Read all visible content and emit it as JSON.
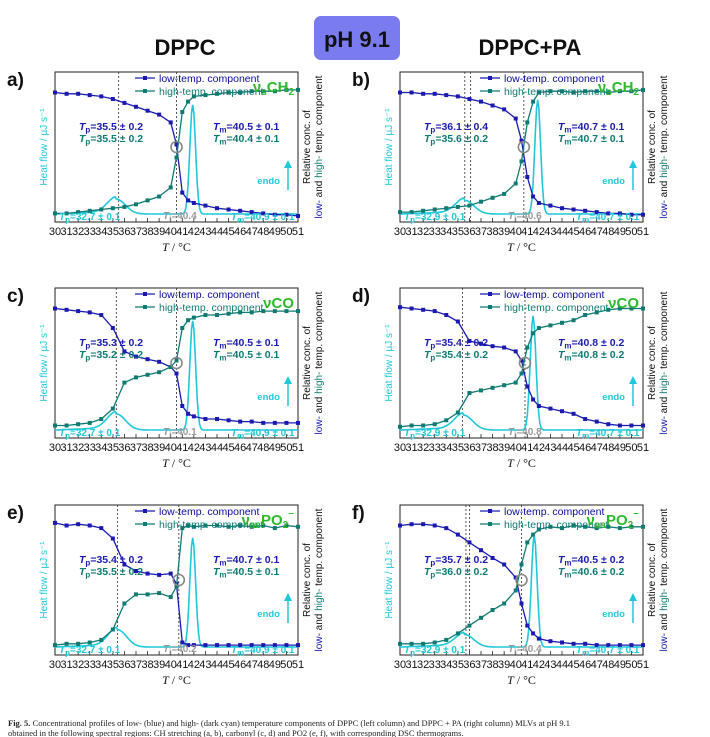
{
  "figure": {
    "ph_label": "pH 9.1",
    "ph_badge_color": "#7b7bf0",
    "columns": [
      "DPPC",
      "DPPC+PA"
    ],
    "x_axis_title": "T / °C",
    "left_axis_title": "Heat flow / µJ s⁻¹",
    "right_axis_title_line1": "Relative conc. of",
    "right_axis_title_line2": "low- and high- temp. component",
    "endo_label": "endo",
    "legend": {
      "low": "low-temp. component",
      "high": "high-temp. component"
    },
    "colors": {
      "low": "#1a1ab0",
      "high": "#0f7a72",
      "dsc": "#1ec8d8",
      "band": "#2eb82e",
      "circle": "#888888"
    }
  },
  "caption": {
    "label": "Fig. 5.",
    "text": "Concentrational profiles of low- (blue) and high- (dark cyan) temperature components of DPPC (left column) and DPPC + PA (right column) MLVs at pH 9.1",
    "text2": "obtained in the following spectral regions: CH stretching (a, b), carbonyl (c, d) and PO2 (e, f), with corresponding DSC thermograms."
  },
  "chart_data": [
    {
      "panel": "a)",
      "type": "line",
      "band": "νsCH2",
      "xlim": [
        30,
        51
      ],
      "xticks": [
        30,
        31,
        32,
        33,
        34,
        35,
        36,
        37,
        38,
        39,
        40,
        41,
        42,
        43,
        44,
        45,
        46,
        47,
        48,
        49,
        50,
        51
      ],
      "x": [
        30,
        31,
        32,
        33,
        34,
        35,
        36,
        37,
        38,
        39,
        40,
        40.5,
        41,
        41.5,
        42,
        43,
        44,
        45,
        46,
        47,
        48,
        49,
        50,
        51
      ],
      "series": [
        {
          "name": "low-temp. component",
          "values": [
            0.95,
            0.94,
            0.94,
            0.93,
            0.92,
            0.9,
            0.87,
            0.84,
            0.81,
            0.78,
            0.72,
            0.55,
            0.18,
            0.12,
            0.1,
            0.08,
            0.06,
            0.05,
            0.04,
            0.03,
            0.02,
            0.01,
            0.01,
            0.0
          ]
        },
        {
          "name": "high-temp. component",
          "values": [
            0.02,
            0.02,
            0.03,
            0.04,
            0.05,
            0.06,
            0.07,
            0.09,
            0.12,
            0.15,
            0.22,
            0.45,
            0.8,
            0.88,
            0.92,
            0.93,
            0.94,
            0.95,
            0.95,
            0.96,
            0.96,
            0.96,
            0.97,
            0.97
          ]
        }
      ],
      "dsc": {
        "pre_T": 35.3,
        "pre_h": 0.12,
        "main_T": 41.9,
        "main_h": 0.88
      },
      "vlines": [
        35.5,
        40.5
      ],
      "annotations": {
        "tp1": "Tp=35.5 ± 0.2",
        "tp2": "Tp=35.5 ± 0.2",
        "tm1": "Tm=40.5 ± 0.1",
        "tm2": "Tm=40.4 ± 0.1",
        "dsc_tp": "Tp=32.7 ± 0.1",
        "dsc_tm": "Tm=40.9 ± 0.1",
        "ti": "Ti=40.4"
      }
    },
    {
      "panel": "b)",
      "type": "line",
      "band": "νsCH2",
      "xlim": [
        30,
        51
      ],
      "xticks": [
        30,
        31,
        32,
        33,
        34,
        35,
        36,
        37,
        38,
        39,
        40,
        41,
        42,
        43,
        44,
        45,
        46,
        47,
        48,
        49,
        50,
        51
      ],
      "x": [
        30,
        31,
        32,
        33,
        34,
        35,
        36,
        37,
        38,
        39,
        40,
        40.5,
        41,
        41.5,
        42,
        43,
        44,
        45,
        46,
        47,
        48,
        49,
        50,
        51
      ],
      "series": [
        {
          "name": "low-temp. component",
          "values": [
            0.95,
            0.95,
            0.94,
            0.94,
            0.93,
            0.92,
            0.9,
            0.88,
            0.85,
            0.82,
            0.75,
            0.58,
            0.3,
            0.15,
            0.1,
            0.08,
            0.06,
            0.05,
            0.04,
            0.03,
            0.02,
            0.02,
            0.01,
            0.01
          ]
        },
        {
          "name": "high-temp. component",
          "values": [
            0.03,
            0.03,
            0.04,
            0.05,
            0.06,
            0.07,
            0.08,
            0.11,
            0.14,
            0.17,
            0.25,
            0.42,
            0.72,
            0.88,
            0.95,
            0.96,
            0.96,
            0.95,
            0.96,
            0.96,
            0.95,
            0.96,
            0.96,
            0.97
          ]
        }
      ],
      "dsc": {
        "pre_T": 35.6,
        "pre_h": 0.11,
        "main_T": 41.9,
        "main_h": 0.92
      },
      "vlines": [
        35.6,
        36.1,
        40.7
      ],
      "annotations": {
        "tp1": "Tp=36.1 ± 0.4",
        "tp2": "Tp=35.6 ± 0.2",
        "tm1": "Tm=40.7 ± 0.1",
        "tm2": "Tm=40.7 ± 0.1",
        "dsc_tp": "Tp=32.9 ± 0.1",
        "dsc_tm": "Tm=40.7 ± 0.1",
        "ti": "Ti=40.6"
      }
    },
    {
      "panel": "c)",
      "type": "line",
      "band": "νCO",
      "xlim": [
        30,
        51
      ],
      "xticks": [
        30,
        31,
        32,
        33,
        34,
        35,
        36,
        37,
        38,
        39,
        40,
        41,
        42,
        43,
        44,
        45,
        46,
        47,
        48,
        49,
        50,
        51
      ],
      "x": [
        30,
        31,
        32,
        33,
        34,
        35,
        36,
        37,
        38,
        39,
        40,
        40.5,
        41,
        41.5,
        42,
        43,
        44,
        45,
        46,
        47,
        48,
        49,
        50,
        51
      ],
      "series": [
        {
          "name": "low-temp. component",
          "values": [
            0.95,
            0.94,
            0.93,
            0.92,
            0.9,
            0.8,
            0.62,
            0.58,
            0.56,
            0.54,
            0.5,
            0.45,
            0.2,
            0.14,
            0.12,
            0.1,
            0.1,
            0.09,
            0.08,
            0.08,
            0.07,
            0.07,
            0.07,
            0.07
          ]
        },
        {
          "name": "high-temp. component",
          "values": [
            0.05,
            0.05,
            0.06,
            0.07,
            0.1,
            0.18,
            0.38,
            0.42,
            0.44,
            0.46,
            0.5,
            0.55,
            0.8,
            0.86,
            0.88,
            0.9,
            0.9,
            0.91,
            0.92,
            0.92,
            0.93,
            0.93,
            0.93,
            0.93
          ]
        }
      ],
      "dsc": {
        "pre_T": 35.3,
        "pre_h": 0.13,
        "main_T": 41.9,
        "main_h": 0.88
      },
      "vlines": [
        35.3,
        40.5
      ],
      "annotations": {
        "tp1": "Tp=35.3 ± 0.2",
        "tp2": "Tp=35.2 ± 0.2",
        "tm1": "Tm=40.5 ± 0.1",
        "tm2": "Tm=40.5 ± 0.1",
        "dsc_tp": "Tp=32.7 ± 0.1",
        "dsc_tm": "Tm=40.9 ± 0.1",
        "ti": "Ti=40.1"
      }
    },
    {
      "panel": "d)",
      "type": "line",
      "band": "νCO",
      "xlim": [
        30,
        51
      ],
      "xticks": [
        30,
        31,
        32,
        33,
        34,
        35,
        36,
        37,
        38,
        39,
        40,
        41,
        42,
        43,
        44,
        45,
        46,
        47,
        48,
        49,
        50,
        51
      ],
      "x": [
        30,
        31,
        32,
        33,
        34,
        35,
        36,
        37,
        38,
        39,
        40,
        40.5,
        41,
        41.5,
        42,
        43,
        44,
        45,
        46,
        47,
        48,
        49,
        50,
        51
      ],
      "series": [
        {
          "name": "low-temp. component",
          "values": [
            0.96,
            0.95,
            0.94,
            0.93,
            0.9,
            0.85,
            0.7,
            0.68,
            0.66,
            0.65,
            0.62,
            0.55,
            0.35,
            0.25,
            0.2,
            0.18,
            0.16,
            0.14,
            0.1,
            0.08,
            0.06,
            0.05,
            0.05,
            0.05
          ]
        },
        {
          "name": "high-temp. component",
          "values": [
            0.04,
            0.05,
            0.05,
            0.06,
            0.09,
            0.15,
            0.3,
            0.32,
            0.34,
            0.36,
            0.38,
            0.45,
            0.65,
            0.76,
            0.8,
            0.82,
            0.84,
            0.86,
            0.9,
            0.92,
            0.94,
            0.95,
            0.95,
            0.95
          ]
        }
      ],
      "dsc": {
        "pre_T": 35.5,
        "pre_h": 0.12,
        "main_T": 41.5,
        "main_h": 0.92
      },
      "vlines": [
        35.4,
        40.8
      ],
      "annotations": {
        "tp1": "Tp=35.4 ± 0.2",
        "tp2": "Tp=35.4 ± 0.2",
        "tm1": "Tm=40.8 ± 0.2",
        "tm2": "Tm=40.8 ± 0.2",
        "dsc_tp": "Tp=32.9 ± 0.1",
        "dsc_tm": "Tm=40.7 ± 0.1",
        "ti": "Ti=40.8"
      }
    },
    {
      "panel": "e)",
      "type": "line",
      "band": "νasPO2⁻",
      "xlim": [
        30,
        51
      ],
      "xticks": [
        30,
        31,
        32,
        33,
        34,
        35,
        36,
        37,
        38,
        39,
        40,
        41,
        42,
        43,
        44,
        45,
        46,
        47,
        48,
        49,
        50,
        51
      ],
      "x": [
        30,
        31,
        32,
        33,
        34,
        35,
        36,
        37,
        38,
        39,
        40,
        40.5,
        41,
        41.5,
        42,
        43,
        44,
        45,
        46,
        47,
        48,
        49,
        50,
        51
      ],
      "series": [
        {
          "name": "low-temp. component",
          "values": [
            0.97,
            0.95,
            0.96,
            0.95,
            0.93,
            0.85,
            0.65,
            0.6,
            0.58,
            0.57,
            0.58,
            0.5,
            0.05,
            0.03,
            0.03,
            0.03,
            0.03,
            0.03,
            0.03,
            0.03,
            0.03,
            0.03,
            0.03,
            0.03
          ]
        },
        {
          "name": "high-temp. component",
          "values": [
            0.03,
            0.04,
            0.04,
            0.05,
            0.07,
            0.15,
            0.35,
            0.42,
            0.42,
            0.43,
            0.4,
            0.48,
            0.93,
            0.95,
            0.94,
            0.95,
            0.95,
            0.94,
            0.95,
            0.94,
            0.95,
            0.93,
            0.95,
            0.94
          ]
        }
      ],
      "dsc": {
        "pre_T": 35.4,
        "pre_h": 0.14,
        "main_T": 41.9,
        "main_h": 0.88
      },
      "vlines": [
        35.4,
        40.7
      ],
      "annotations": {
        "tp1": "Tp=35.4 ± 0.2",
        "tp2": "Tp=35.5 ± 0.2",
        "tm1": "Tm=40.7 ± 0.1",
        "tm2": "Tm=40.5 ± 0.1",
        "dsc_tp": "Tp=32.7 ± 0.1",
        "dsc_tm": "Tm=40.9 ± 0.1",
        "ti": "Ti=40.2"
      }
    },
    {
      "panel": "f)",
      "type": "line",
      "band": "νasPO2⁻",
      "xlim": [
        30,
        51
      ],
      "xticks": [
        30,
        31,
        32,
        33,
        34,
        35,
        36,
        37,
        38,
        39,
        40,
        41,
        42,
        43,
        44,
        45,
        46,
        47,
        48,
        49,
        50,
        51
      ],
      "x": [
        30,
        31,
        32,
        33,
        34,
        35,
        36,
        37,
        38,
        39,
        40,
        40.5,
        41,
        41.5,
        42,
        43,
        44,
        45,
        46,
        47,
        48,
        49,
        50,
        51
      ],
      "series": [
        {
          "name": "low-temp. component",
          "values": [
            0.95,
            0.96,
            0.96,
            0.95,
            0.93,
            0.88,
            0.82,
            0.76,
            0.7,
            0.65,
            0.55,
            0.35,
            0.18,
            0.12,
            0.08,
            0.06,
            0.05,
            0.04,
            0.04,
            0.03,
            0.03,
            0.03,
            0.03,
            0.03
          ]
        },
        {
          "name": "high-temp. component",
          "values": [
            0.04,
            0.04,
            0.04,
            0.05,
            0.07,
            0.12,
            0.18,
            0.24,
            0.3,
            0.35,
            0.45,
            0.65,
            0.82,
            0.88,
            0.92,
            0.94,
            0.93,
            0.95,
            0.94,
            0.93,
            0.94,
            0.93,
            0.94,
            0.94
          ]
        }
      ],
      "dsc": {
        "pre_T": 35.6,
        "pre_h": 0.1,
        "main_T": 41.6,
        "main_h": 0.9
      },
      "vlines": [
        35.7,
        36.0,
        40.5
      ],
      "annotations": {
        "tp1": "Tp=35.7 ± 0.2",
        "tp2": "Tp=36.0 ± 0.2",
        "tm1": "Tm=40.5 ± 0.2",
        "tm2": "Tm=40.6 ± 0.2",
        "dsc_tp": "Tp=32.9 ± 0.1",
        "dsc_tm": "Tm=40.7 ± 0.1",
        "ti": "Ti=40.4"
      }
    }
  ]
}
